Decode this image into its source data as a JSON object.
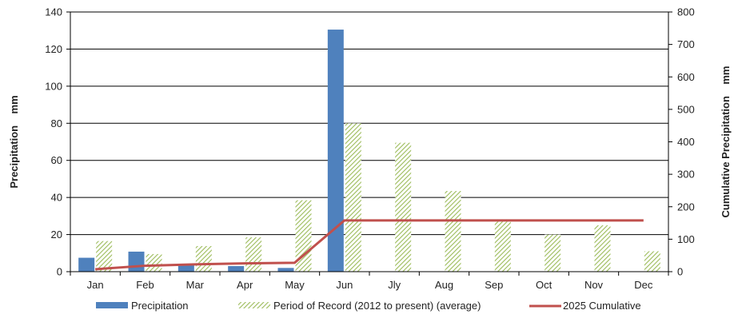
{
  "chart_data": {
    "type": "bar",
    "categories": [
      "Jan",
      "Feb",
      "Mar",
      "Apr",
      "May",
      "Jun",
      "Jly",
      "Aug",
      "Sep",
      "Oct",
      "Nov",
      "Dec"
    ],
    "series": [
      {
        "name": "Precipitation",
        "kind": "bar",
        "axis": "left",
        "color": "#4f81bd",
        "values": [
          7.5,
          10.8,
          4.2,
          3.0,
          2.0,
          130.5,
          null,
          null,
          null,
          null,
          null,
          null
        ]
      },
      {
        "name": "Period of Record (2012 to present) (average)",
        "kind": "bar",
        "axis": "left",
        "color": "#9bbb59",
        "pattern": "diagonal-hatch",
        "values": [
          16.5,
          9.5,
          13.8,
          18.5,
          38.5,
          80.0,
          69.5,
          43.5,
          27.0,
          20.0,
          25.0,
          11.0
        ]
      },
      {
        "name": "2025 Cumulative",
        "kind": "line",
        "axis": "right",
        "color": "#c0504d",
        "values": [
          7.5,
          18.3,
          22.5,
          25.5,
          27.5,
          158.0,
          158.0,
          158.0,
          158.0,
          158.0,
          158.0,
          158.0
        ]
      }
    ],
    "ylabel": "Precipitation    mm",
    "y2label": "Cumulative Precipitation    mm",
    "ylim": [
      0,
      140
    ],
    "y2lim": [
      0,
      800
    ],
    "yticks": [
      "0",
      "20",
      "40",
      "60",
      "80",
      "100",
      "120",
      "140"
    ],
    "y2ticks": [
      "0",
      "100",
      "200",
      "300",
      "400",
      "500",
      "600",
      "700",
      "800"
    ],
    "grid": true,
    "legend_position": "bottom"
  }
}
